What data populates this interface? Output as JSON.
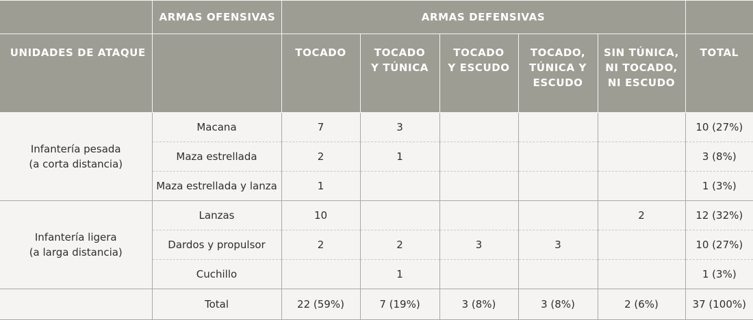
{
  "header": {
    "armas_ofensivas": "ARMAS OFENSIVAS",
    "armas_defensivas": "ARMAS DEFENSIVAS",
    "unidades_de_ataque": "UNIDADES DE ATAQUE",
    "columns": {
      "tocado": "TOCADO",
      "tocado_tunica": "TOCADO\nY TÚNICA",
      "tocado_escudo": "TOCADO\nY ESCUDO",
      "tocado_tunica_escudo": "TOCADO,\nTÚNICA Y\nESCUDO",
      "sin_nada": "SIN TÚNICA,\nNI TOCADO,\nNI ESCUDO",
      "total": "TOTAL"
    }
  },
  "groups": [
    {
      "label": "Infantería pesada\n(a corta distancia)",
      "rows": [
        {
          "weapon": "Macana",
          "tocado": "7",
          "tocado_tunica": "3",
          "tocado_escudo": "",
          "tocado_tunica_escudo": "",
          "sin_nada": "",
          "total": "10 (27%)"
        },
        {
          "weapon": "Maza estrellada",
          "tocado": "2",
          "tocado_tunica": "1",
          "tocado_escudo": "",
          "tocado_tunica_escudo": "",
          "sin_nada": "",
          "total": "3 (8%)"
        },
        {
          "weapon": "Maza estrellada y lanza",
          "tocado": "1",
          "tocado_tunica": "",
          "tocado_escudo": "",
          "tocado_tunica_escudo": "",
          "sin_nada": "",
          "total": "1 (3%)"
        }
      ]
    },
    {
      "label": "Infantería ligera\n(a larga distancia)",
      "rows": [
        {
          "weapon": "Lanzas",
          "tocado": "10",
          "tocado_tunica": "",
          "tocado_escudo": "",
          "tocado_tunica_escudo": "",
          "sin_nada": "2",
          "total": "12 (32%)"
        },
        {
          "weapon": "Dardos y propulsor",
          "tocado": "2",
          "tocado_tunica": "2",
          "tocado_escudo": "3",
          "tocado_tunica_escudo": "3",
          "sin_nada": "",
          "total": "10 (27%)"
        },
        {
          "weapon": "Cuchillo",
          "tocado": "",
          "tocado_tunica": "1",
          "tocado_escudo": "",
          "tocado_tunica_escudo": "",
          "sin_nada": "",
          "total": "1 (3%)"
        }
      ]
    }
  ],
  "totals": {
    "label": "Total",
    "tocado": "22 (59%)",
    "tocado_tunica": "7 (19%)",
    "tocado_escudo": "3 (8%)",
    "tocado_tunica_escudo": "3 (8%)",
    "sin_nada": "2 (6%)",
    "total": "37 (100%)"
  }
}
